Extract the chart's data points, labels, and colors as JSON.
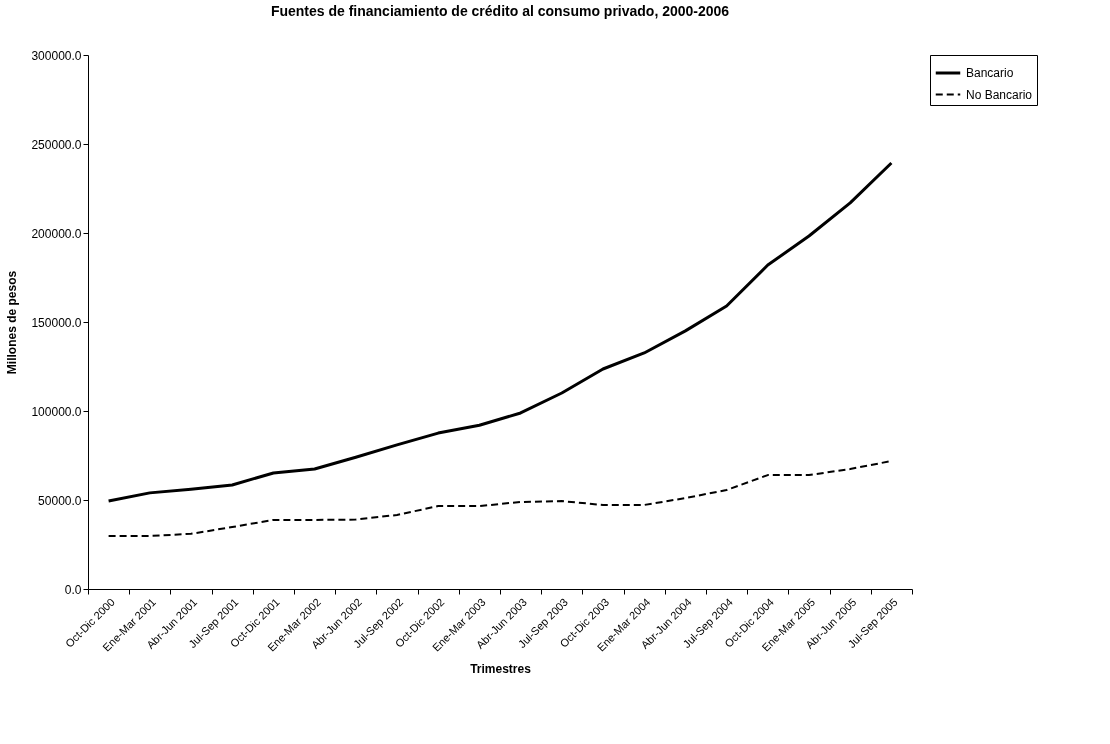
{
  "chart_data": {
    "type": "line",
    "title": "Fuentes de financiamiento de crédito al consumo privado, 2000-2006",
    "xlabel": "Trimestres",
    "ylabel": "Millones de pesos",
    "categories": [
      "Oct-Dic 2000",
      "Ene-Mar 2001",
      "Abr-Jun 2001",
      "Jul-Sep 2001",
      "Oct-Dic 2001",
      "Ene-Mar 2002",
      "Abr-Jun 2002",
      "Jul-Sep 2002",
      "Oct-Dic 2002",
      "Ene-Mar 2003",
      "Abr-Jun 2003",
      "Jul-Sep 2003",
      "Oct-Dic 2003",
      "Ene-Mar 2004",
      "Abr-Jun 2004",
      "Jul-Sep 2004",
      "Oct-Dic 2004",
      "Ene-Mar 2005",
      "Abr-Jun 2005",
      "Jul-Sep 2005"
    ],
    "series": [
      {
        "name": "Bancario",
        "color": "#000000",
        "line_style": "solid",
        "values": [
          49400,
          54000,
          56000,
          58400,
          65200,
          67400,
          74000,
          81000,
          87600,
          92000,
          98900,
          110100,
          123600,
          132600,
          145000,
          159000,
          182000,
          198300,
          216900,
          239300
        ]
      },
      {
        "name": "No Bancario",
        "color": "#000000",
        "line_style": "dashed",
        "values": [
          29800,
          29800,
          31000,
          34800,
          38800,
          38800,
          39000,
          41600,
          46600,
          46600,
          48900,
          49400,
          47200,
          47200,
          51100,
          55600,
          64000,
          64000,
          67400,
          71900
        ]
      }
    ],
    "ylim": [
      0,
      300000
    ],
    "yticks": [
      {
        "value": 0,
        "label": "0.0"
      },
      {
        "value": 50000,
        "label": "50000.0"
      },
      {
        "value": 100000,
        "label": "100000.0"
      },
      {
        "value": 150000,
        "label": "150000.0"
      },
      {
        "value": 200000,
        "label": "200000.0"
      },
      {
        "value": 250000,
        "label": "250000.0"
      },
      {
        "value": 300000,
        "label": "300000.0"
      }
    ],
    "grid": false,
    "legend": "right",
    "marker": "none"
  }
}
